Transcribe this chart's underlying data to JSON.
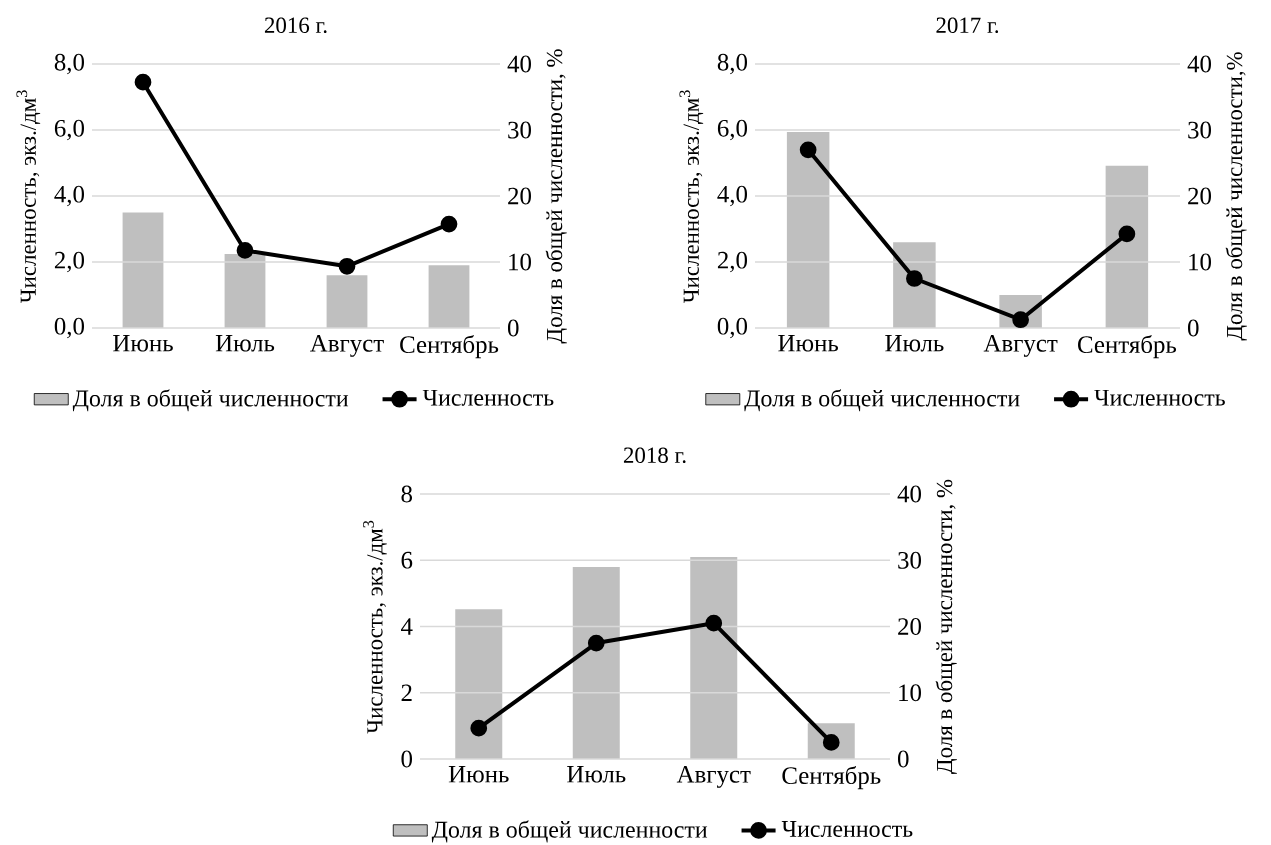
{
  "chart_data": [
    {
      "type": "bar",
      "title": "2016 г.",
      "ylabel": "Численность, экз./дм$^{3}$",
      "y2label": "Доля в общей численности, %",
      "categories": [
        "Июнь",
        "Июль",
        "Август",
        "Сентябрь"
      ],
      "series": [
        {
          "name": "Доля в общей численности",
          "axis": "y2",
          "color": "#bfbfbf",
          "values": [
            17.5,
            11.2,
            8.0,
            9.5
          ]
        },
        {
          "name": "Численность",
          "type": "line",
          "color": "#000000",
          "marker": "circle",
          "values": [
            7.45,
            2.35,
            1.87,
            3.15
          ]
        }
      ],
      "ylim": [
        0,
        8
      ],
      "yticks": [
        {
          "value": 0,
          "label": "0,0"
        },
        {
          "value": 2,
          "label": "2,0"
        },
        {
          "value": 4,
          "label": "4,0"
        },
        {
          "value": 6,
          "label": "6,0"
        },
        {
          "value": 8,
          "label": "8,0"
        }
      ],
      "y2lim": [
        0,
        40
      ],
      "y2ticks": [
        0,
        10,
        20,
        30,
        40
      ],
      "grid": "y",
      "legend": "bottom"
    },
    {
      "type": "bar",
      "title": "2017 г.",
      "ylabel": "Численность, экз./дм$^{3}$",
      "y2label": "Доля в общей численности,%",
      "categories": [
        "Июнь",
        "Июль",
        "Август",
        "Сентябрь"
      ],
      "series": [
        {
          "name": "Доля в общей численности",
          "axis": "y2",
          "color": "#bfbfbf",
          "values": [
            29.7,
            13.0,
            5.0,
            24.6
          ]
        },
        {
          "name": "Численность",
          "type": "line",
          "color": "#000000",
          "marker": "circle",
          "values": [
            5.4,
            1.5,
            0.25,
            2.85
          ]
        }
      ],
      "ylim": [
        0,
        8
      ],
      "yticks": [
        {
          "value": 0,
          "label": "0,0"
        },
        {
          "value": 2,
          "label": "2,0"
        },
        {
          "value": 4,
          "label": "4,0"
        },
        {
          "value": 6,
          "label": "6,0"
        },
        {
          "value": 8,
          "label": "8,0"
        }
      ],
      "y2lim": [
        0,
        40
      ],
      "y2ticks": [
        0,
        10,
        20,
        30,
        40
      ],
      "grid": "y",
      "legend": "bottom"
    },
    {
      "type": "bar",
      "title": "2018 г.",
      "ylabel": "Численность, экз./дм$^{3}$",
      "y2label": "Доля в общей численности, %",
      "categories": [
        "Июнь",
        "Июль",
        "Август",
        "Сентябрь"
      ],
      "series": [
        {
          "name": "Доля в общей численности",
          "axis": "y2",
          "color": "#bfbfbf",
          "values": [
            22.6,
            29.0,
            30.5,
            5.4
          ]
        },
        {
          "name": "Численность",
          "type": "line",
          "color": "#000000",
          "marker": "circle",
          "values": [
            0.93,
            3.5,
            4.1,
            0.5
          ]
        }
      ],
      "ylim": [
        0,
        8
      ],
      "yticks": [
        0,
        2,
        4,
        6,
        8
      ],
      "y2lim": [
        0,
        40
      ],
      "y2ticks": [
        0,
        10,
        20,
        30,
        40
      ],
      "grid": "y",
      "legend": "bottom"
    }
  ]
}
